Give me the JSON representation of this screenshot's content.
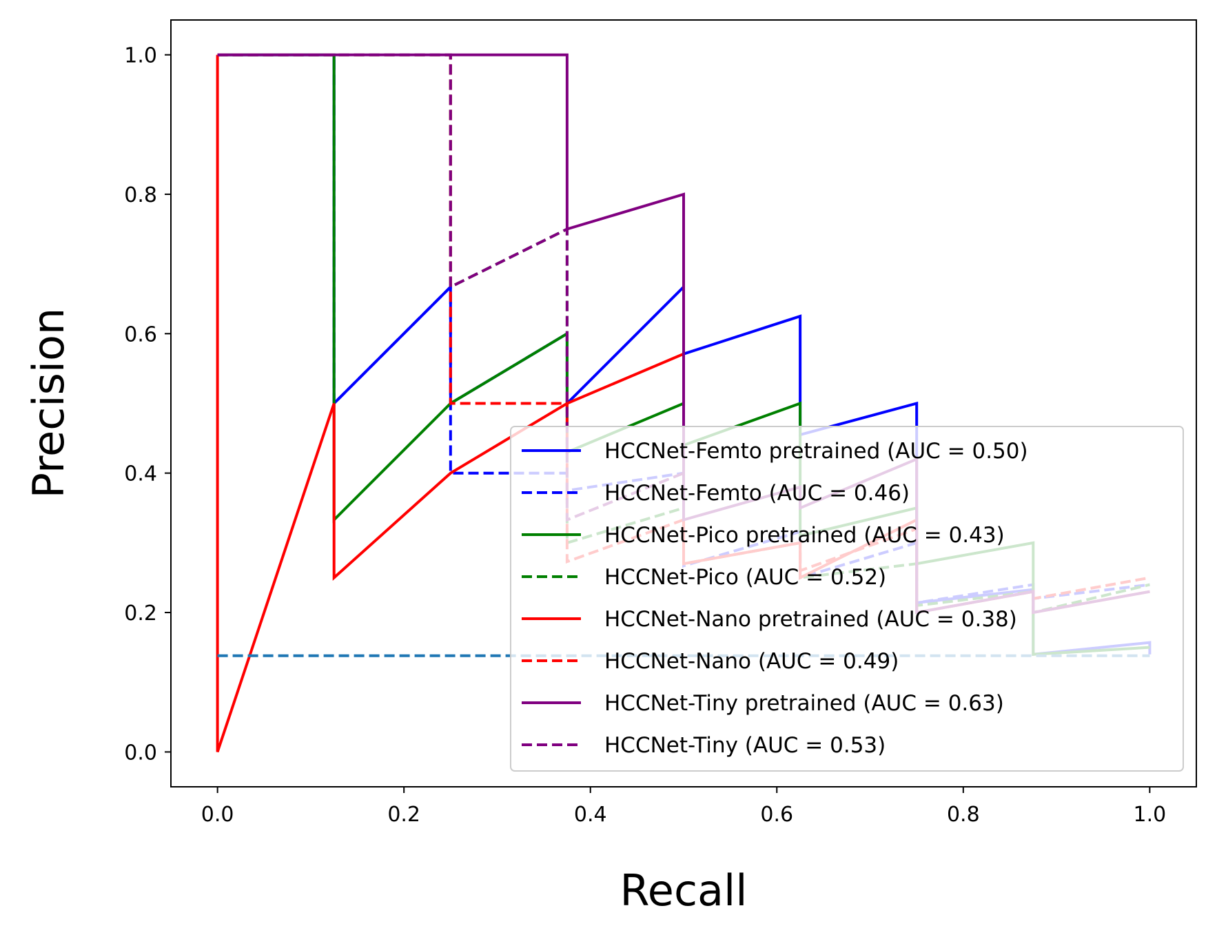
{
  "chart_data": {
    "type": "line",
    "title": "",
    "xlabel": "Recall",
    "ylabel": "Precision",
    "xlim": [
      -0.05,
      1.05
    ],
    "ylim": [
      -0.05,
      1.05
    ],
    "xticks": [
      "0.0",
      "0.2",
      "0.4",
      "0.6",
      "0.8",
      "1.0"
    ],
    "yticks": [
      "0.0",
      "0.2",
      "0.4",
      "0.6",
      "0.8",
      "1.0"
    ],
    "grid": false,
    "legend_position": "lower-right",
    "series": [
      {
        "name": "HCCNet-Femto pretrained (AUC = 0.50)",
        "color": "#0000ff",
        "dash": "solid",
        "x": [
          0,
          0,
          0.125,
          0.125,
          0.25,
          0.25,
          0.375,
          0.375,
          0.5,
          0.5,
          0.625,
          0.625,
          0.75,
          0.75,
          0.875,
          0.875,
          1.0,
          1.0
        ],
        "y": [
          1.0,
          1.0,
          1.0,
          0.5,
          0.667,
          0.5,
          0.6,
          0.5,
          0.667,
          0.571,
          0.625,
          0.455,
          0.5,
          0.214,
          0.233,
          0.14,
          0.157,
          0.14
        ]
      },
      {
        "name": "HCCNet-Femto  (AUC = 0.46)",
        "color": "#0000ff",
        "dash": "dashed",
        "x": [
          0,
          0.125,
          0.125,
          0.25,
          0.25,
          0.375,
          0.375,
          0.5,
          0.5,
          0.625,
          0.625,
          0.75,
          0.75,
          0.875,
          0.875,
          1.0
        ],
        "y": [
          1.0,
          1.0,
          0.5,
          0.667,
          0.4,
          0.4,
          0.375,
          0.4,
          0.267,
          0.316,
          0.25,
          0.3,
          0.214,
          0.24,
          0.22,
          0.24
        ]
      },
      {
        "name": "HCCNet-Pico pretrained (AUC = 0.43)",
        "color": "#008000",
        "dash": "solid",
        "x": [
          0,
          0.125,
          0.125,
          0.25,
          0.25,
          0.375,
          0.375,
          0.5,
          0.5,
          0.625,
          0.625,
          0.75,
          0.75,
          0.875,
          0.875,
          1.0
        ],
        "y": [
          1.0,
          1.0,
          0.333,
          0.5,
          0.5,
          0.6,
          0.43,
          0.5,
          0.44,
          0.5,
          0.31,
          0.35,
          0.27,
          0.3,
          0.14,
          0.15
        ]
      },
      {
        "name": "HCCNet-Pico  (AUC = 0.52)",
        "color": "#008000",
        "dash": "dashed",
        "x": [
          0,
          0.25,
          0.25,
          0.375,
          0.375,
          0.5,
          0.5,
          0.625,
          0.625,
          0.75,
          0.75,
          0.875,
          0.875,
          1.0
        ],
        "y": [
          1.0,
          1.0,
          0.667,
          0.75,
          0.3,
          0.35,
          0.27,
          0.3,
          0.25,
          0.27,
          0.21,
          0.23,
          0.2,
          0.24
        ]
      },
      {
        "name": "HCCNet-Nano pretrained (AUC = 0.38)",
        "color": "#ff0000",
        "dash": "solid",
        "x": [
          0,
          0,
          0.125,
          0.125,
          0.25,
          0.375,
          0.5,
          0.5,
          0.625,
          0.625,
          0.75,
          0.75,
          0.875,
          0.875,
          1.0
        ],
        "y": [
          1.0,
          0.0,
          0.5,
          0.25,
          0.4,
          0.5,
          0.571,
          0.27,
          0.3,
          0.25,
          0.333,
          0.2,
          0.23,
          0.2,
          0.23
        ]
      },
      {
        "name": "HCCNet-Nano  (AUC = 0.49)",
        "color": "#ff0000",
        "dash": "dashed",
        "x": [
          0,
          0.25,
          0.25,
          0.375,
          0.375,
          0.5,
          0.5,
          0.625,
          0.625,
          0.75,
          0.75,
          0.875,
          0.875,
          1.0
        ],
        "y": [
          1.0,
          1.0,
          0.5,
          0.5,
          0.273,
          0.333,
          0.27,
          0.3,
          0.26,
          0.32,
          0.2,
          0.23,
          0.22,
          0.25
        ]
      },
      {
        "name": "HCCNet-Tiny pretrained (AUC = 0.63)",
        "color": "#800080",
        "dash": "solid",
        "x": [
          0,
          0.375,
          0.375,
          0.5,
          0.5,
          0.625,
          0.625,
          0.75,
          0.75,
          0.875,
          0.875,
          1.0
        ],
        "y": [
          1.0,
          1.0,
          0.75,
          0.8,
          0.333,
          0.38,
          0.35,
          0.42,
          0.2,
          0.23,
          0.2,
          0.23
        ]
      },
      {
        "name": "HCCNet-Tiny  (AUC = 0.53)",
        "color": "#800080",
        "dash": "dashed",
        "x": [
          0,
          0.25,
          0.25,
          0.375,
          0.375,
          0.5,
          0.5
        ],
        "y": [
          1.0,
          1.0,
          0.667,
          0.75,
          0.333,
          0.4,
          0.4
        ]
      },
      {
        "color": "#1f77b4",
        "dash": "dashed",
        "x": [
          0,
          1.0
        ],
        "y": [
          0.138,
          0.138
        ]
      }
    ]
  }
}
